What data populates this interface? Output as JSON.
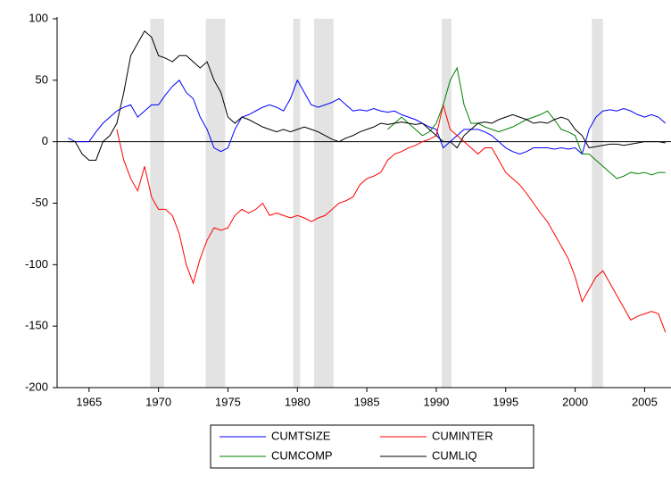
{
  "chart_data": {
    "type": "line",
    "x": [
      1963.5,
      1964,
      1964.5,
      1965,
      1965.5,
      1966,
      1966.5,
      1967,
      1967.5,
      1968,
      1968.5,
      1969,
      1969.5,
      1970,
      1970.5,
      1971,
      1971.5,
      1972,
      1972.5,
      1973,
      1973.5,
      1974,
      1974.5,
      1975,
      1975.5,
      1976,
      1976.5,
      1977,
      1977.5,
      1978,
      1978.5,
      1979,
      1979.5,
      1980,
      1980.5,
      1981,
      1981.5,
      1982,
      1982.5,
      1983,
      1983.5,
      1984,
      1984.5,
      1985,
      1985.5,
      1986,
      1986.5,
      1987,
      1987.5,
      1988,
      1988.5,
      1989,
      1989.5,
      1990,
      1990.5,
      1991,
      1991.5,
      1992,
      1992.5,
      1993,
      1993.5,
      1994,
      1994.5,
      1995,
      1995.5,
      1996,
      1996.5,
      1997,
      1997.5,
      1998,
      1998.5,
      1999,
      1999.5,
      2000,
      2000.5,
      2001,
      2001.5,
      2002,
      2002.5,
      2003,
      2003.5,
      2004,
      2004.5,
      2005,
      2005.5,
      2006,
      2006.5
    ],
    "series": [
      {
        "name": "CUMTSIZE",
        "color": "#0000ff",
        "values": [
          3,
          0,
          0,
          0,
          8,
          15,
          20,
          25,
          28,
          30,
          20,
          25,
          30,
          30,
          38,
          45,
          50,
          40,
          35,
          20,
          10,
          -5,
          -8,
          -5,
          10,
          20,
          22,
          25,
          28,
          30,
          28,
          25,
          35,
          50,
          40,
          30,
          28,
          30,
          32,
          35,
          30,
          25,
          26,
          25,
          27,
          25,
          24,
          25,
          22,
          20,
          18,
          15,
          12,
          10,
          -5,
          0,
          5,
          10,
          10,
          10,
          8,
          5,
          0,
          -5,
          -8,
          -10,
          -8,
          -5,
          -5,
          -5,
          -6,
          -5,
          -6,
          -5,
          -10,
          10,
          20,
          25,
          26,
          25,
          27,
          25,
          22,
          20,
          22,
          20,
          15
        ]
      },
      {
        "name": "CUMINTER",
        "color": "#ff0000",
        "values": [
          null,
          null,
          null,
          null,
          null,
          null,
          null,
          10,
          -15,
          -30,
          -40,
          -20,
          -45,
          -55,
          -55,
          -60,
          -75,
          -100,
          -115,
          -95,
          -80,
          -70,
          -72,
          -70,
          -60,
          -55,
          -58,
          -55,
          -50,
          -60,
          -58,
          -60,
          -62,
          -60,
          -62,
          -65,
          -62,
          -60,
          -55,
          -50,
          -48,
          -45,
          -35,
          -30,
          -28,
          -25,
          -15,
          -10,
          -8,
          -5,
          -3,
          0,
          2,
          5,
          30,
          10,
          5,
          0,
          -5,
          -10,
          -5,
          -5,
          -15,
          -25,
          -30,
          -35,
          -42,
          -50,
          -58,
          -65,
          -75,
          -85,
          -95,
          -110,
          -130,
          -120,
          -110,
          -105,
          -115,
          -125,
          -135,
          -145,
          -142,
          -140,
          -138,
          -140,
          -155
        ]
      },
      {
        "name": "CUMCOMP",
        "color": "#008000",
        "values": [
          null,
          null,
          null,
          null,
          null,
          null,
          null,
          null,
          null,
          null,
          null,
          null,
          null,
          null,
          null,
          null,
          null,
          null,
          null,
          null,
          null,
          null,
          null,
          null,
          null,
          null,
          null,
          null,
          null,
          null,
          null,
          null,
          null,
          null,
          null,
          null,
          null,
          null,
          null,
          null,
          null,
          null,
          null,
          null,
          null,
          null,
          10,
          15,
          20,
          15,
          10,
          5,
          8,
          15,
          30,
          50,
          60,
          30,
          15,
          15,
          12,
          10,
          8,
          10,
          12,
          15,
          18,
          20,
          22,
          25,
          18,
          10,
          8,
          5,
          -10,
          -10,
          -15,
          -20,
          -25,
          -30,
          -28,
          -25,
          -26,
          -25,
          -27,
          -25,
          -25
        ]
      },
      {
        "name": "CUMLIQ",
        "color": "#000000",
        "values": [
          0,
          0,
          -10,
          -15,
          -15,
          0,
          5,
          15,
          40,
          70,
          80,
          90,
          85,
          70,
          68,
          65,
          70,
          70,
          65,
          60,
          65,
          50,
          40,
          20,
          15,
          20,
          18,
          15,
          12,
          10,
          8,
          10,
          8,
          10,
          12,
          10,
          8,
          5,
          2,
          0,
          3,
          5,
          8,
          10,
          12,
          15,
          14,
          15,
          16,
          15,
          14,
          15,
          10,
          5,
          0,
          0,
          -5,
          5,
          10,
          15,
          16,
          15,
          18,
          20,
          22,
          20,
          18,
          15,
          16,
          15,
          18,
          20,
          18,
          10,
          5,
          -5,
          -4,
          -3,
          -2,
          -2,
          -3,
          -2,
          -1,
          0,
          0,
          0,
          -1
        ]
      }
    ],
    "shaded_periods": [
      [
        1969.4,
        1970.4
      ],
      [
        1973.4,
        1974.8
      ],
      [
        1979.7,
        1980.2
      ],
      [
        1981.2,
        1982.6
      ],
      [
        1990.4,
        1991.1
      ],
      [
        2001.2,
        2002.0
      ]
    ],
    "reference_line": 0,
    "xlim": [
      1962.7,
      2006.9
    ],
    "xticks": [
      1965,
      1970,
      1975,
      1980,
      1985,
      1990,
      1995,
      2000,
      2005
    ],
    "ylim": [
      -200,
      100
    ],
    "yticks": [
      -200,
      -150,
      -100,
      -50,
      0,
      50,
      100
    ]
  }
}
